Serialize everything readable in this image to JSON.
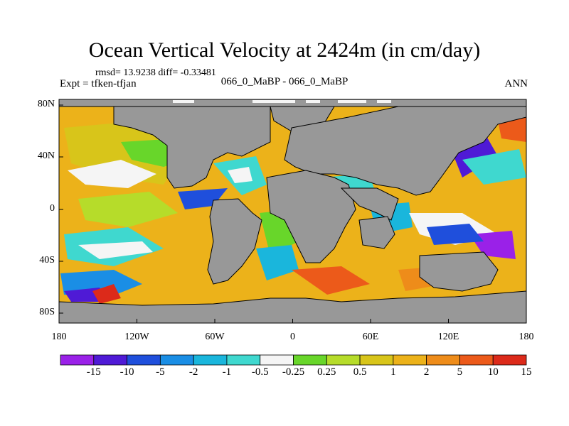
{
  "title": "Ocean Vertical Velocity at 2424m (in cm/day)",
  "stats": "rmsd= 13.9238 diff= -0.33481",
  "expt": "Expt = tfken-tfjan",
  "subtitle": "066_0_MaBP - 066_0_MaBP",
  "season": "ANN",
  "colors": {
    "land": "#989898",
    "frame": "#000000",
    "levels": [
      "#9a21e8",
      "#4f1ad6",
      "#1f4fdc",
      "#1a8ee5",
      "#1ab6dc",
      "#3fd8cf",
      "#f5f5f5",
      "#68d62a",
      "#b6dc2a",
      "#d8c51a",
      "#ecb21a",
      "#ee8c1a",
      "#ec5a1a",
      "#dc2a1a"
    ]
  },
  "chart_data": {
    "type": "heatmap",
    "projection": "cylindrical-equidistant",
    "xticks": [
      "180",
      "120W",
      "60W",
      "0",
      "60E",
      "120E",
      "180"
    ],
    "yticks": [
      "80N",
      "40N",
      "0",
      "40S",
      "80S"
    ],
    "xlim": [
      -180,
      180
    ],
    "ylim": [
      -90,
      90
    ],
    "colorbar": {
      "labels": [
        "-15",
        "-10",
        "-5",
        "-2",
        "-1",
        "-0.5",
        "-0.25",
        "0.25",
        "0.5",
        "1",
        "2",
        "5",
        "10",
        "15"
      ],
      "boundaries": [
        -15,
        -10,
        -5,
        -2,
        -1,
        -0.5,
        -0.25,
        0.25,
        0.5,
        1,
        2,
        5,
        10,
        15
      ]
    }
  }
}
